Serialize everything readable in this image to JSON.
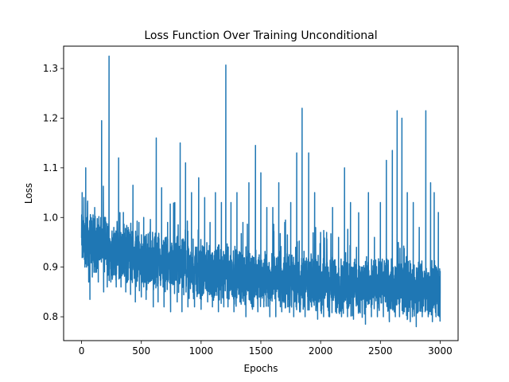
{
  "chart_data": {
    "type": "line",
    "title": "Loss Function Over Training Unconditional",
    "xlabel": "Epochs",
    "ylabel": "Loss",
    "xlim": [
      -150,
      3150
    ],
    "ylim": [
      0.752,
      1.345
    ],
    "xticks": [
      0,
      500,
      1000,
      1500,
      2000,
      2500,
      3000
    ],
    "yticks": [
      0.8,
      0.9,
      1.0,
      1.1,
      1.2,
      1.3
    ],
    "ytick_labels": [
      "0.8",
      "0.9",
      "1.0",
      "1.1",
      "1.2",
      "1.3"
    ],
    "grid": false,
    "series": [
      {
        "color": "#1f77b4",
        "trend": {
          "x": [
            0,
            100,
            250,
            500,
            1000,
            1500,
            2000,
            2500,
            3000
          ],
          "y": [
            0.955,
            0.95,
            0.935,
            0.915,
            0.89,
            0.875,
            0.865,
            0.86,
            0.855
          ]
        },
        "points": [
          {
            "x": 0,
            "y": 0.96
          },
          {
            "x": 5,
            "y": 1.05
          },
          {
            "x": 12,
            "y": 0.92
          },
          {
            "x": 20,
            "y": 1.04
          },
          {
            "x": 28,
            "y": 0.9
          },
          {
            "x": 35,
            "y": 1.1
          },
          {
            "x": 42,
            "y": 0.9
          },
          {
            "x": 50,
            "y": 1.03
          },
          {
            "x": 60,
            "y": 0.87
          },
          {
            "x": 70,
            "y": 0.835
          },
          {
            "x": 78,
            "y": 1.0
          },
          {
            "x": 90,
            "y": 0.88
          },
          {
            "x": 110,
            "y": 1.02
          },
          {
            "x": 140,
            "y": 0.87
          },
          {
            "x": 168,
            "y": 1.195
          },
          {
            "x": 185,
            "y": 0.85
          },
          {
            "x": 200,
            "y": 1.0
          },
          {
            "x": 215,
            "y": 0.86
          },
          {
            "x": 230,
            "y": 1.325
          },
          {
            "x": 245,
            "y": 0.87
          },
          {
            "x": 270,
            "y": 0.98
          },
          {
            "x": 290,
            "y": 0.86
          },
          {
            "x": 310,
            "y": 1.12
          },
          {
            "x": 330,
            "y": 0.86
          },
          {
            "x": 350,
            "y": 1.01
          },
          {
            "x": 370,
            "y": 0.85
          },
          {
            "x": 390,
            "y": 0.98
          },
          {
            "x": 410,
            "y": 0.845
          },
          {
            "x": 430,
            "y": 1.065
          },
          {
            "x": 450,
            "y": 0.83
          },
          {
            "x": 480,
            "y": 0.99
          },
          {
            "x": 500,
            "y": 0.84
          },
          {
            "x": 520,
            "y": 1.0
          },
          {
            "x": 540,
            "y": 0.835
          },
          {
            "x": 570,
            "y": 0.97
          },
          {
            "x": 600,
            "y": 0.82
          },
          {
            "x": 625,
            "y": 1.16
          },
          {
            "x": 640,
            "y": 0.83
          },
          {
            "x": 670,
            "y": 1.06
          },
          {
            "x": 690,
            "y": 0.82
          },
          {
            "x": 720,
            "y": 0.99
          },
          {
            "x": 745,
            "y": 0.81
          },
          {
            "x": 780,
            "y": 1.03
          },
          {
            "x": 800,
            "y": 0.83
          },
          {
            "x": 825,
            "y": 1.15
          },
          {
            "x": 840,
            "y": 0.81
          },
          {
            "x": 870,
            "y": 1.11
          },
          {
            "x": 890,
            "y": 0.82
          },
          {
            "x": 920,
            "y": 1.05
          },
          {
            "x": 945,
            "y": 0.82
          },
          {
            "x": 980,
            "y": 1.08
          },
          {
            "x": 1000,
            "y": 0.815
          },
          {
            "x": 1030,
            "y": 1.04
          },
          {
            "x": 1055,
            "y": 0.83
          },
          {
            "x": 1075,
            "y": 0.99
          },
          {
            "x": 1095,
            "y": 0.82
          },
          {
            "x": 1120,
            "y": 1.05
          },
          {
            "x": 1145,
            "y": 0.81
          },
          {
            "x": 1170,
            "y": 1.03
          },
          {
            "x": 1190,
            "y": 0.82
          },
          {
            "x": 1207,
            "y": 1.307
          },
          {
            "x": 1225,
            "y": 0.82
          },
          {
            "x": 1250,
            "y": 1.03
          },
          {
            "x": 1275,
            "y": 0.81
          },
          {
            "x": 1300,
            "y": 1.05
          },
          {
            "x": 1325,
            "y": 0.83
          },
          {
            "x": 1350,
            "y": 0.99
          },
          {
            "x": 1375,
            "y": 0.8
          },
          {
            "x": 1400,
            "y": 1.07
          },
          {
            "x": 1425,
            "y": 0.82
          },
          {
            "x": 1455,
            "y": 1.145
          },
          {
            "x": 1475,
            "y": 0.81
          },
          {
            "x": 1500,
            "y": 1.09
          },
          {
            "x": 1525,
            "y": 0.82
          },
          {
            "x": 1550,
            "y": 1.02
          },
          {
            "x": 1575,
            "y": 0.8
          },
          {
            "x": 1600,
            "y": 1.02
          },
          {
            "x": 1625,
            "y": 0.8
          },
          {
            "x": 1650,
            "y": 1.07
          },
          {
            "x": 1675,
            "y": 0.81
          },
          {
            "x": 1700,
            "y": 0.99
          },
          {
            "x": 1725,
            "y": 0.82
          },
          {
            "x": 1750,
            "y": 1.03
          },
          {
            "x": 1775,
            "y": 0.8
          },
          {
            "x": 1800,
            "y": 1.13
          },
          {
            "x": 1825,
            "y": 0.81
          },
          {
            "x": 1845,
            "y": 1.22
          },
          {
            "x": 1870,
            "y": 0.8
          },
          {
            "x": 1900,
            "y": 1.13
          },
          {
            "x": 1925,
            "y": 0.82
          },
          {
            "x": 1950,
            "y": 1.05
          },
          {
            "x": 1975,
            "y": 0.795
          },
          {
            "x": 2000,
            "y": 0.97
          },
          {
            "x": 2025,
            "y": 0.8
          },
          {
            "x": 2050,
            "y": 0.97
          },
          {
            "x": 2075,
            "y": 0.8
          },
          {
            "x": 2100,
            "y": 1.02
          },
          {
            "x": 2125,
            "y": 0.81
          },
          {
            "x": 2150,
            "y": 0.96
          },
          {
            "x": 2175,
            "y": 0.8
          },
          {
            "x": 2200,
            "y": 1.1
          },
          {
            "x": 2225,
            "y": 0.8
          },
          {
            "x": 2250,
            "y": 1.03
          },
          {
            "x": 2275,
            "y": 0.795
          },
          {
            "x": 2300,
            "y": 0.94
          },
          {
            "x": 2325,
            "y": 0.81
          },
          {
            "x": 2350,
            "y": 0.9
          },
          {
            "x": 2375,
            "y": 0.785
          },
          {
            "x": 2400,
            "y": 1.05
          },
          {
            "x": 2425,
            "y": 0.8
          },
          {
            "x": 2450,
            "y": 0.96
          },
          {
            "x": 2475,
            "y": 0.8
          },
          {
            "x": 2500,
            "y": 1.03
          },
          {
            "x": 2525,
            "y": 0.8
          },
          {
            "x": 2550,
            "y": 1.115
          },
          {
            "x": 2575,
            "y": 0.79
          },
          {
            "x": 2600,
            "y": 1.135
          },
          {
            "x": 2625,
            "y": 0.8
          },
          {
            "x": 2640,
            "y": 1.215
          },
          {
            "x": 2660,
            "y": 0.8
          },
          {
            "x": 2680,
            "y": 1.2
          },
          {
            "x": 2700,
            "y": 0.81
          },
          {
            "x": 2725,
            "y": 1.05
          },
          {
            "x": 2750,
            "y": 0.79
          },
          {
            "x": 2775,
            "y": 1.03
          },
          {
            "x": 2800,
            "y": 0.78
          },
          {
            "x": 2825,
            "y": 0.98
          },
          {
            "x": 2850,
            "y": 0.8
          },
          {
            "x": 2880,
            "y": 1.215
          },
          {
            "x": 2900,
            "y": 0.8
          },
          {
            "x": 2920,
            "y": 1.07
          },
          {
            "x": 2935,
            "y": 0.79
          },
          {
            "x": 2950,
            "y": 1.05
          },
          {
            "x": 2965,
            "y": 0.8
          },
          {
            "x": 2985,
            "y": 1.01
          },
          {
            "x": 3000,
            "y": 0.85
          }
        ]
      }
    ]
  }
}
